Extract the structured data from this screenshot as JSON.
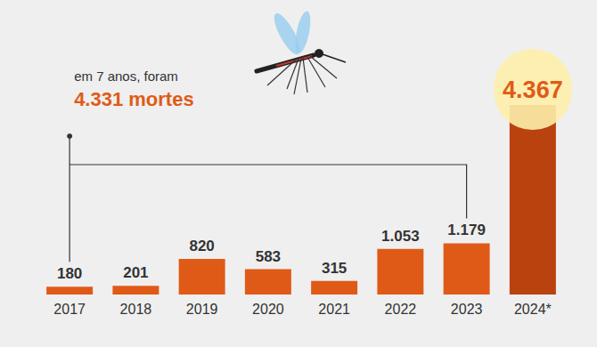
{
  "chart_data": {
    "type": "bar",
    "categories": [
      "2017",
      "2018",
      "2019",
      "2020",
      "2021",
      "2022",
      "2023",
      "2024*"
    ],
    "values": [
      180,
      201,
      820,
      583,
      315,
      1053,
      1179,
      4367
    ],
    "value_labels": [
      "180",
      "201",
      "820",
      "583",
      "315",
      "1.053",
      "1.179",
      "4.367"
    ],
    "colors": [
      "#e05a17",
      "#e05a17",
      "#e05a17",
      "#e05a17",
      "#e05a17",
      "#e05a17",
      "#e05a17",
      "#b9420f"
    ],
    "ylim": [
      0,
      4367
    ],
    "data_labels": true,
    "tick_labels": "x",
    "grid": false,
    "annotations": [
      {
        "text": "em 7 anos, foram",
        "from": "2017",
        "to": "2023"
      },
      {
        "text": "4.331 mortes"
      }
    ]
  }
}
